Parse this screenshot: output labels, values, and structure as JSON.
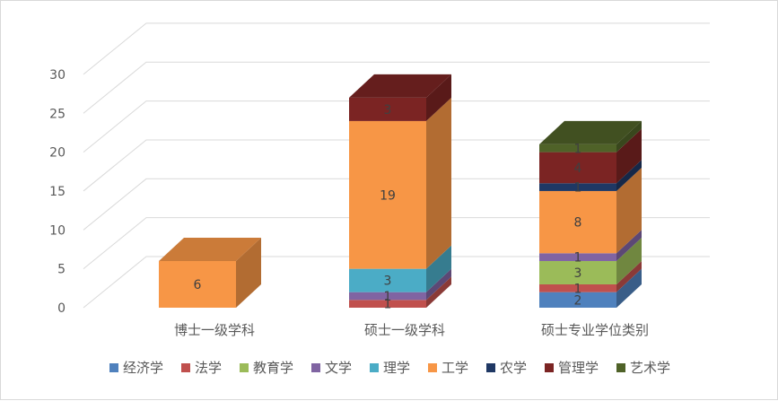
{
  "chart_data": {
    "type": "bar",
    "stacked": true,
    "three_d": true,
    "categories": [
      "博士一级学科",
      "硕士一级学科",
      "硕士专业学位类别"
    ],
    "ylim": [
      0,
      30
    ],
    "yticks": [
      0,
      5,
      10,
      15,
      20,
      25,
      30
    ],
    "ytick_labels": [
      "0",
      "5",
      "10",
      "15",
      "20",
      "25",
      "30"
    ],
    "grid": true,
    "legend_position": "bottom",
    "series": [
      {
        "name": "经济学",
        "color": "#4f81bd",
        "values": [
          0,
          0,
          2
        ]
      },
      {
        "name": "法学",
        "color": "#c0504d",
        "values": [
          0,
          1,
          1
        ]
      },
      {
        "name": "教育学",
        "color": "#9bbb59",
        "values": [
          0,
          0,
          3
        ]
      },
      {
        "name": "文学",
        "color": "#8064a2",
        "values": [
          0,
          1,
          1
        ]
      },
      {
        "name": "理学",
        "color": "#4bacc6",
        "values": [
          0,
          3,
          0
        ]
      },
      {
        "name": "工学",
        "color": "#f79646",
        "values": [
          6,
          19,
          8
        ]
      },
      {
        "name": "农学",
        "color": "#1f3864",
        "values": [
          0,
          0,
          1
        ]
      },
      {
        "name": "管理学",
        "color": "#7b2423",
        "values": [
          0,
          3,
          4
        ]
      },
      {
        "name": "艺术学",
        "color": "#4f6228",
        "values": [
          0,
          0,
          1
        ]
      }
    ],
    "segment_labels": [
      [
        null,
        null,
        null,
        null,
        null,
        "6",
        null,
        null,
        null
      ],
      [
        null,
        "1",
        null,
        "1",
        "3",
        "19",
        null,
        "3",
        null
      ],
      [
        "2",
        "1",
        "3",
        "1",
        null,
        "8",
        "1",
        "4",
        "1"
      ]
    ]
  }
}
